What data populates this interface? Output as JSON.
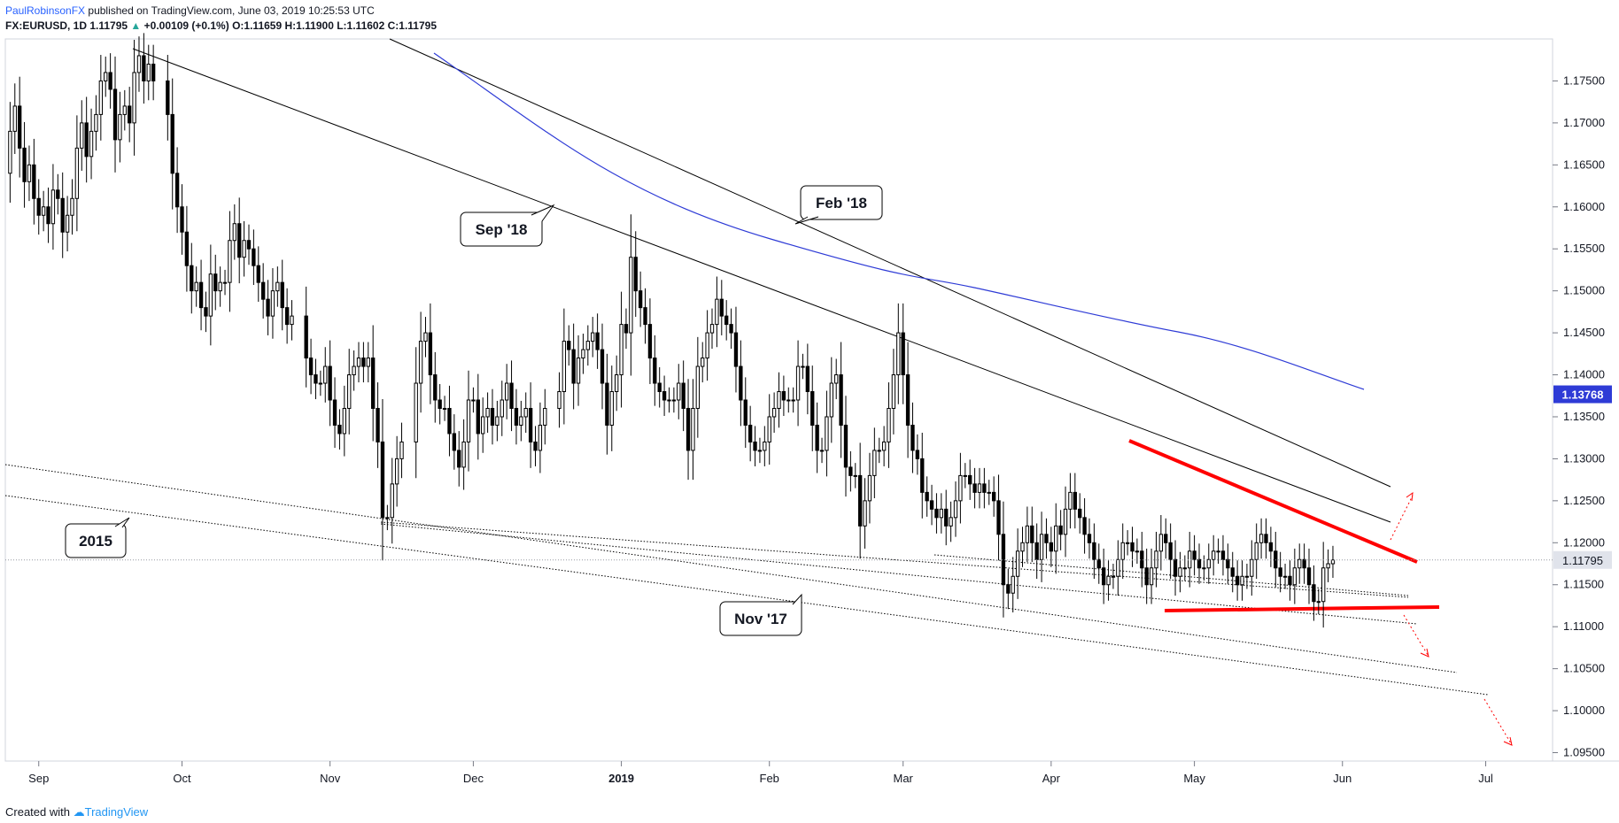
{
  "header": {
    "author": "PaulRobinsonFX",
    "published": "published on TradingView.com, June 03, 2019 10:25:53 UTC",
    "symbol": "FX:EURUSD, 1D",
    "last": "1.11795",
    "change_arrow": "▲",
    "change": "+0.00109 (+0.1%)",
    "o_label": "O:",
    "o_value": "1.11659",
    "h_label": "H:",
    "h_value": "1.11900",
    "l_label": "L:",
    "l_value": "1.11602",
    "c_label": "C:",
    "c_value": "1.11795"
  },
  "footer": {
    "created_with": "Created with",
    "brand": "TradingView"
  },
  "chart_data": {
    "type": "candlestick",
    "symbol": "FX:EURUSD",
    "timeframe": "1D",
    "ylim": [
      1.094,
      1.18
    ],
    "y_ticks": [
      "1.17500",
      "1.17000",
      "1.16500",
      "1.16000",
      "1.15500",
      "1.15000",
      "1.14500",
      "1.14000",
      "1.13500",
      "1.13000",
      "1.12500",
      "1.12000",
      "1.11500",
      "1.11000",
      "1.10500",
      "1.10000",
      "1.09500"
    ],
    "x_ticks": [
      {
        "label": "Sep",
        "t": 0
      },
      {
        "label": "Oct",
        "t": 30
      },
      {
        "label": "Nov",
        "t": 61
      },
      {
        "label": "Dec",
        "t": 91
      },
      {
        "label": "2019",
        "t": 122,
        "bold": true
      },
      {
        "label": "Feb",
        "t": 153
      },
      {
        "label": "Mar",
        "t": 181
      },
      {
        "label": "Apr",
        "t": 212
      },
      {
        "label": "May",
        "t": 242
      },
      {
        "label": "Jun",
        "t": 273
      },
      {
        "label": "Jul",
        "t": 303
      }
    ],
    "t_range": [
      -7,
      317
    ],
    "closes": [
      [
        -7,
        1.164
      ],
      [
        -6,
        1.169
      ],
      [
        -5,
        1.172
      ],
      [
        -4,
        1.167
      ],
      [
        -3,
        1.163
      ],
      [
        -2,
        1.165
      ],
      [
        -1,
        1.161
      ],
      [
        0,
        1.159
      ],
      [
        1,
        1.16
      ],
      [
        2,
        1.158
      ],
      [
        3,
        1.162
      ],
      [
        4,
        1.161
      ],
      [
        5,
        1.157
      ],
      [
        6,
        1.159
      ],
      [
        7,
        1.161
      ],
      [
        8,
        1.167
      ],
      [
        9,
        1.17
      ],
      [
        10,
        1.166
      ],
      [
        11,
        1.169
      ],
      [
        12,
        1.171
      ],
      [
        13,
        1.175
      ],
      [
        14,
        1.176
      ],
      [
        15,
        1.174
      ],
      [
        16,
        1.168
      ],
      [
        17,
        1.171
      ],
      [
        18,
        1.172
      ],
      [
        19,
        1.17
      ],
      [
        20,
        1.176
      ],
      [
        21,
        1.178
      ],
      [
        22,
        1.175
      ],
      [
        23,
        1.177
      ],
      [
        24,
        1.175
      ],
      [
        27,
        1.171
      ],
      [
        28,
        1.164
      ],
      [
        29,
        1.16
      ],
      [
        30,
        1.157
      ],
      [
        31,
        1.153
      ],
      [
        32,
        1.15
      ],
      [
        33,
        1.151
      ],
      [
        34,
        1.148
      ],
      [
        35,
        1.147
      ],
      [
        36,
        1.152
      ],
      [
        37,
        1.15
      ],
      [
        38,
        1.151
      ],
      [
        39,
        1.151
      ],
      [
        40,
        1.156
      ],
      [
        41,
        1.158
      ],
      [
        42,
        1.154
      ],
      [
        43,
        1.156
      ],
      [
        44,
        1.155
      ],
      [
        45,
        1.153
      ],
      [
        46,
        1.151
      ],
      [
        47,
        1.149
      ],
      [
        48,
        1.147
      ],
      [
        49,
        1.15
      ],
      [
        50,
        1.151
      ],
      [
        51,
        1.148
      ],
      [
        52,
        1.146
      ],
      [
        53,
        1.147
      ],
      [
        56,
        1.142
      ],
      [
        57,
        1.14
      ],
      [
        58,
        1.139
      ],
      [
        59,
        1.139
      ],
      [
        60,
        1.141
      ],
      [
        61,
        1.137
      ],
      [
        62,
        1.134
      ],
      [
        63,
        1.133
      ],
      [
        64,
        1.136
      ],
      [
        65,
        1.14
      ],
      [
        66,
        1.141
      ],
      [
        67,
        1.142
      ],
      [
        68,
        1.141
      ],
      [
        69,
        1.142
      ],
      [
        70,
        1.136
      ],
      [
        71,
        1.132
      ],
      [
        72,
        1.123
      ],
      [
        73,
        1.123
      ],
      [
        74,
        1.127
      ],
      [
        75,
        1.13
      ],
      [
        76,
        1.132
      ],
      [
        79,
        1.139
      ],
      [
        80,
        1.144
      ],
      [
        81,
        1.145
      ],
      [
        82,
        1.14
      ],
      [
        83,
        1.137
      ],
      [
        84,
        1.136
      ],
      [
        85,
        1.136
      ],
      [
        86,
        1.133
      ],
      [
        87,
        1.131
      ],
      [
        88,
        1.129
      ],
      [
        89,
        1.132
      ],
      [
        90,
        1.137
      ],
      [
        91,
        1.137
      ],
      [
        92,
        1.133
      ],
      [
        93,
        1.135
      ],
      [
        94,
        1.136
      ],
      [
        95,
        1.134
      ],
      [
        96,
        1.135
      ],
      [
        97,
        1.137
      ],
      [
        98,
        1.139
      ],
      [
        99,
        1.136
      ],
      [
        100,
        1.134
      ],
      [
        101,
        1.135
      ],
      [
        102,
        1.136
      ],
      [
        103,
        1.132
      ],
      [
        104,
        1.131
      ],
      [
        105,
        1.134
      ],
      [
        106,
        1.136
      ],
      [
        109,
        1.138
      ],
      [
        110,
        1.144
      ],
      [
        111,
        1.143
      ],
      [
        112,
        1.139
      ],
      [
        113,
        1.142
      ],
      [
        114,
        1.143
      ],
      [
        115,
        1.144
      ],
      [
        116,
        1.145
      ],
      [
        117,
        1.143
      ],
      [
        118,
        1.139
      ],
      [
        119,
        1.134
      ],
      [
        120,
        1.138
      ],
      [
        121,
        1.14
      ],
      [
        122,
        1.146
      ],
      [
        123,
        1.145
      ],
      [
        124,
        1.154
      ],
      [
        125,
        1.15
      ],
      [
        126,
        1.148
      ],
      [
        127,
        1.146
      ],
      [
        128,
        1.142
      ],
      [
        129,
        1.139
      ],
      [
        130,
        1.138
      ],
      [
        131,
        1.137
      ],
      [
        132,
        1.137
      ],
      [
        133,
        1.137
      ],
      [
        134,
        1.139
      ],
      [
        135,
        1.136
      ],
      [
        136,
        1.131
      ],
      [
        137,
        1.136
      ],
      [
        138,
        1.141
      ],
      [
        139,
        1.142
      ],
      [
        140,
        1.145
      ],
      [
        141,
        1.146
      ],
      [
        142,
        1.149
      ],
      [
        143,
        1.147
      ],
      [
        144,
        1.146
      ],
      [
        145,
        1.145
      ],
      [
        146,
        1.141
      ],
      [
        147,
        1.137
      ],
      [
        148,
        1.134
      ],
      [
        149,
        1.132
      ],
      [
        150,
        1.131
      ],
      [
        151,
        1.131
      ],
      [
        152,
        1.132
      ],
      [
        153,
        1.135
      ],
      [
        154,
        1.136
      ],
      [
        155,
        1.138
      ],
      [
        156,
        1.137
      ],
      [
        157,
        1.137
      ],
      [
        158,
        1.137
      ],
      [
        159,
        1.141
      ],
      [
        160,
        1.141
      ],
      [
        161,
        1.138
      ],
      [
        162,
        1.134
      ],
      [
        163,
        1.131
      ],
      [
        164,
        1.131
      ],
      [
        165,
        1.135
      ],
      [
        166,
        1.139
      ],
      [
        167,
        1.14
      ],
      [
        168,
        1.134
      ],
      [
        169,
        1.129
      ],
      [
        170,
        1.128
      ],
      [
        171,
        1.128
      ],
      [
        172,
        1.122
      ],
      [
        173,
        1.125
      ],
      [
        174,
        1.128
      ],
      [
        175,
        1.131
      ],
      [
        176,
        1.131
      ],
      [
        177,
        1.132
      ],
      [
        178,
        1.136
      ],
      [
        179,
        1.14
      ],
      [
        180,
        1.145
      ],
      [
        181,
        1.14
      ],
      [
        182,
        1.134
      ],
      [
        183,
        1.131
      ],
      [
        184,
        1.13
      ],
      [
        185,
        1.126
      ],
      [
        186,
        1.125
      ],
      [
        187,
        1.124
      ],
      [
        188,
        1.123
      ],
      [
        189,
        1.124
      ],
      [
        190,
        1.122
      ],
      [
        191,
        1.123
      ],
      [
        192,
        1.125
      ],
      [
        193,
        1.128
      ],
      [
        194,
        1.128
      ],
      [
        195,
        1.127
      ],
      [
        196,
        1.126
      ],
      [
        197,
        1.127
      ],
      [
        198,
        1.126
      ],
      [
        199,
        1.126
      ],
      [
        200,
        1.125
      ],
      [
        201,
        1.121
      ],
      [
        202,
        1.115
      ],
      [
        203,
        1.114
      ],
      [
        204,
        1.116
      ],
      [
        205,
        1.119
      ],
      [
        206,
        1.12
      ],
      [
        207,
        1.122
      ],
      [
        208,
        1.12
      ],
      [
        209,
        1.118
      ],
      [
        210,
        1.121
      ],
      [
        211,
        1.12
      ],
      [
        212,
        1.119
      ],
      [
        213,
        1.122
      ],
      [
        214,
        1.121
      ],
      [
        215,
        1.124
      ],
      [
        216,
        1.126
      ],
      [
        217,
        1.124
      ],
      [
        218,
        1.123
      ],
      [
        219,
        1.121
      ],
      [
        220,
        1.12
      ],
      [
        221,
        1.118
      ],
      [
        222,
        1.117
      ],
      [
        223,
        1.115
      ],
      [
        224,
        1.116
      ],
      [
        225,
        1.116
      ],
      [
        226,
        1.118
      ],
      [
        227,
        1.12
      ],
      [
        228,
        1.12
      ],
      [
        229,
        1.119
      ],
      [
        230,
        1.119
      ],
      [
        231,
        1.117
      ],
      [
        232,
        1.115
      ],
      [
        233,
        1.117
      ],
      [
        234,
        1.119
      ],
      [
        235,
        1.121
      ],
      [
        236,
        1.12
      ],
      [
        237,
        1.118
      ],
      [
        238,
        1.116
      ],
      [
        239,
        1.117
      ],
      [
        240,
        1.117
      ],
      [
        241,
        1.119
      ],
      [
        242,
        1.118
      ],
      [
        243,
        1.117
      ],
      [
        244,
        1.117
      ],
      [
        245,
        1.118
      ],
      [
        246,
        1.119
      ],
      [
        247,
        1.119
      ],
      [
        248,
        1.118
      ],
      [
        249,
        1.117
      ],
      [
        250,
        1.116
      ],
      [
        251,
        1.115
      ],
      [
        252,
        1.116
      ],
      [
        253,
        1.116
      ],
      [
        254,
        1.118
      ],
      [
        255,
        1.12
      ],
      [
        256,
        1.121
      ],
      [
        257,
        1.12
      ],
      [
        258,
        1.119
      ],
      [
        259,
        1.117
      ],
      [
        260,
        1.116
      ],
      [
        261,
        1.116
      ],
      [
        262,
        1.115
      ],
      [
        263,
        1.117
      ],
      [
        264,
        1.118
      ],
      [
        265,
        1.117
      ],
      [
        266,
        1.115
      ],
      [
        267,
        1.113
      ],
      [
        268,
        1.113
      ],
      [
        269,
        1.117
      ],
      [
        270,
        1.1175
      ],
      [
        271,
        1.11795
      ]
    ],
    "callouts": [
      {
        "text": "Sep '18"
      },
      {
        "text": "Feb '18"
      },
      {
        "text": "2015"
      },
      {
        "text": "Nov '17"
      }
    ],
    "ma_label": "1.13768",
    "last_label": "1.11795"
  }
}
